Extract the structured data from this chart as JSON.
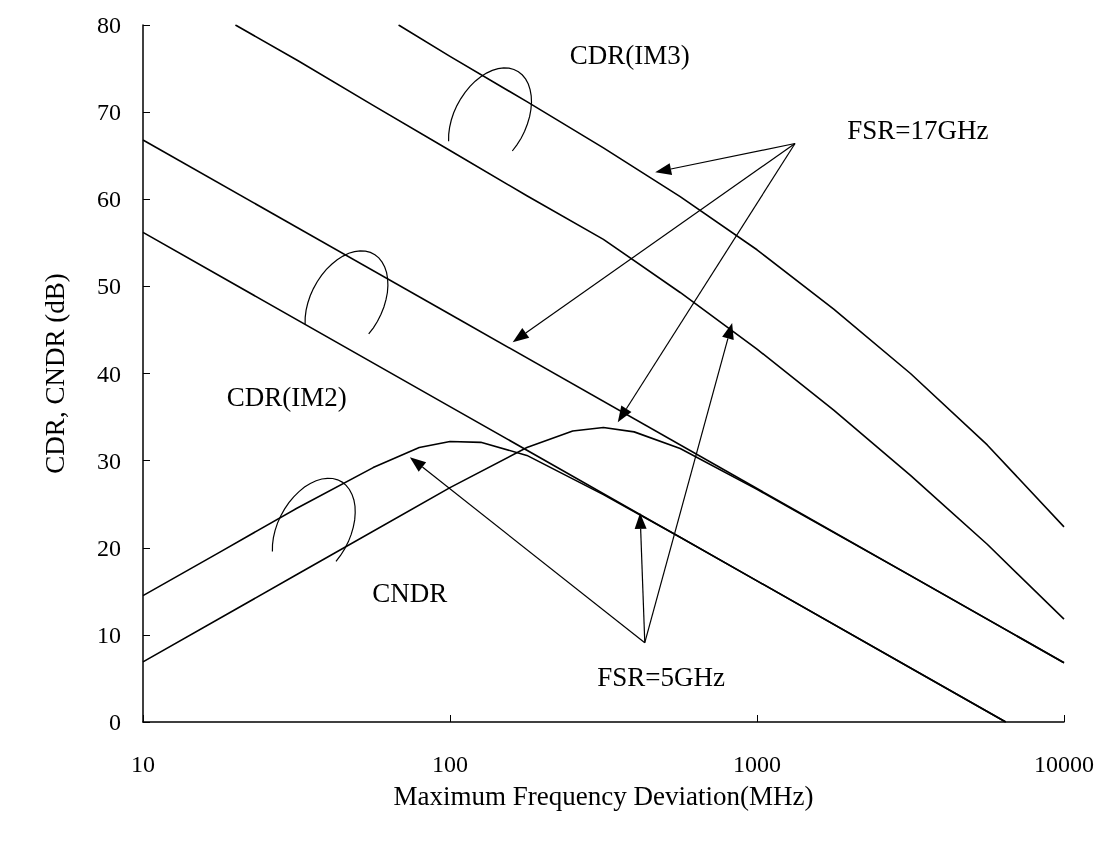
{
  "chart_data": {
    "type": "line",
    "xlabel": "Maximum Frequency Deviation(MHz)",
    "ylabel": "CDR, CNDR (dB)",
    "log": "x",
    "xlim": [
      10,
      10000
    ],
    "xticks": [
      10,
      100,
      1000,
      10000
    ],
    "ylim": [
      0,
      80
    ],
    "yticks": [
      0,
      10,
      20,
      30,
      40,
      50,
      60,
      70,
      80
    ],
    "grid": false,
    "marker": "none",
    "annotations": [
      "CDR(IM3)",
      "CDR(IM2)",
      "CNDR",
      "FSR=17GHz",
      "FSR=5GHz"
    ],
    "series": [
      {
        "color": "#000000",
        "x": [
          68,
          100,
          178,
          316,
          562,
          1000,
          1778,
          3162,
          5623,
          10000
        ],
        "values": [
          80,
          76.4,
          71.2,
          65.9,
          60.3,
          54.2,
          47.4,
          40,
          31.8,
          22.4
        ]
      },
      {
        "color": "#000000",
        "x": [
          20,
          32,
          56,
          100,
          178,
          316,
          562,
          1000,
          1778,
          3162,
          5623,
          10000
        ],
        "values": [
          80,
          75.9,
          70.8,
          65.6,
          60.4,
          55.4,
          49.3,
          42.8,
          35.8,
          28.3,
          20.4,
          11.8
        ]
      },
      {
        "color": "#000000",
        "x": [
          10,
          100,
          1000,
          10000
        ],
        "values": [
          66.8,
          46.8,
          26.8,
          6.8
        ]
      },
      {
        "color": "#000000",
        "x": [
          10,
          100,
          1000,
          6460
        ],
        "values": [
          56.2,
          36.2,
          16.2,
          0
        ]
      },
      {
        "color": "#000000",
        "x": [
          10,
          17.8,
          31.6,
          56.2,
          79.4,
          100,
          126,
          178,
          316,
          562,
          1000,
          3162,
          6460
        ],
        "values": [
          14.5,
          19.5,
          24.5,
          29.2,
          31.5,
          32.2,
          32.1,
          30.6,
          26.1,
          21.2,
          16.2,
          6.2,
          0
        ]
      },
      {
        "color": "#000000",
        "x": [
          10,
          31.6,
          100,
          178,
          251,
          316,
          398,
          562,
          1000,
          3162,
          10000
        ],
        "values": [
          6.9,
          16.9,
          26.9,
          31.5,
          33.4,
          33.8,
          33.3,
          31.4,
          26.7,
          16.8,
          6.8
        ]
      }
    ]
  }
}
